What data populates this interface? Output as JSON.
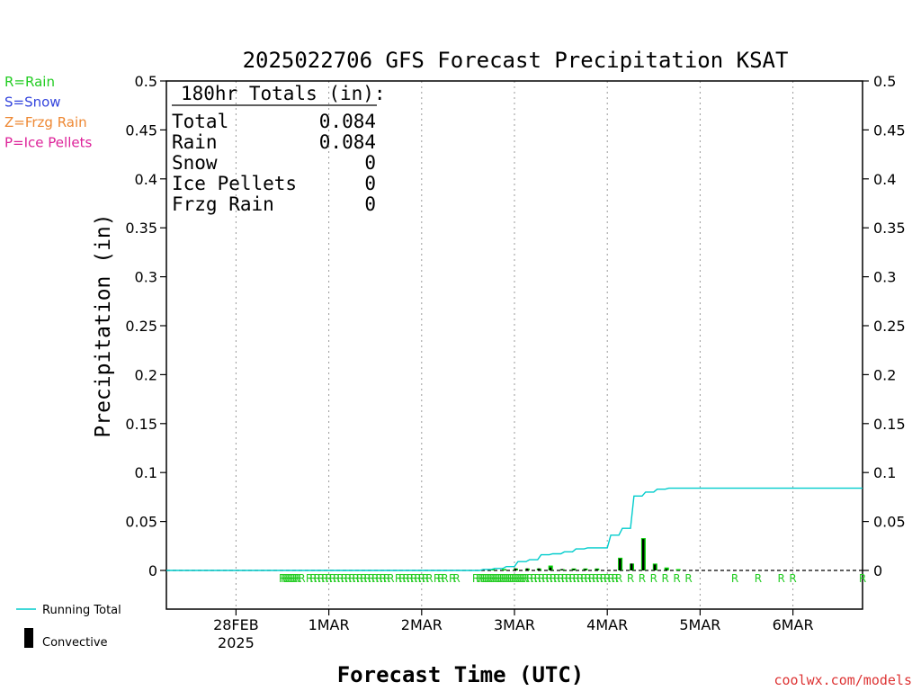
{
  "chart_data": {
    "type": "bar",
    "title": "2025022706 GFS Forecast Precipitation KSAT",
    "xlabel": "Forecast Time (UTC)",
    "ylabel": "Precipitation (in)",
    "ylim": [
      0,
      0.5
    ],
    "y_ticks": [
      "0",
      "0.05",
      "0.1",
      "0.15",
      "0.2",
      "0.25",
      "0.3",
      "0.35",
      "0.4",
      "0.45",
      "0.5"
    ],
    "x_ticks": [
      {
        "label": "28FEB",
        "sub": "2025",
        "hour": 18
      },
      {
        "label": "1MAR",
        "sub": "",
        "hour": 42
      },
      {
        "label": "2MAR",
        "sub": "",
        "hour": 66
      },
      {
        "label": "3MAR",
        "sub": "",
        "hour": 90
      },
      {
        "label": "4MAR",
        "sub": "",
        "hour": 114
      },
      {
        "label": "5MAR",
        "sub": "",
        "hour": 138
      },
      {
        "label": "6MAR",
        "sub": "",
        "hour": 162
      }
    ],
    "xlim_hours": [
      0,
      180
    ],
    "grid": "vertical-dotted",
    "series": [
      {
        "name": "Running Total",
        "color": "#00cccc",
        "points": [
          [
            0,
            0
          ],
          [
            81,
            0
          ],
          [
            84,
            0.001
          ],
          [
            87,
            0.002
          ],
          [
            90,
            0.004
          ],
          [
            93,
            0.009
          ],
          [
            96,
            0.011
          ],
          [
            99,
            0.016
          ],
          [
            102,
            0.017
          ],
          [
            105,
            0.019
          ],
          [
            108,
            0.022
          ],
          [
            111,
            0.023
          ],
          [
            114,
            0.023
          ],
          [
            117,
            0.036
          ],
          [
            120,
            0.043
          ],
          [
            123,
            0.076
          ],
          [
            126,
            0.08
          ],
          [
            129,
            0.083
          ],
          [
            132,
            0.084
          ],
          [
            180,
            0.084
          ]
        ]
      },
      {
        "name": "Convective",
        "color": "#000000",
        "points": [
          [
            90,
            0.002
          ],
          [
            93,
            0.002
          ],
          [
            96,
            0.002
          ],
          [
            99,
            0.003
          ],
          [
            102,
            0.001
          ],
          [
            105,
            0.001
          ],
          [
            108,
            0.001
          ],
          [
            111,
            0.001
          ],
          [
            117,
            0.012
          ],
          [
            120,
            0.007
          ],
          [
            123,
            0.032
          ],
          [
            126,
            0.006
          ],
          [
            129,
            0.001
          ]
        ]
      },
      {
        "name": "Rain",
        "color": "#00cc00",
        "points": [
          [
            84,
            0.001
          ],
          [
            87,
            0.001
          ],
          [
            90,
            0.002
          ],
          [
            93,
            0.002
          ],
          [
            96,
            0.002
          ],
          [
            99,
            0.005
          ],
          [
            102,
            0.001
          ],
          [
            105,
            0.002
          ],
          [
            108,
            0.002
          ],
          [
            111,
            0.002
          ],
          [
            117,
            0.013
          ],
          [
            120,
            0.007
          ],
          [
            123,
            0.033
          ],
          [
            126,
            0.007
          ],
          [
            129,
            0.003
          ],
          [
            132,
            0.001
          ]
        ]
      }
    ],
    "ptype_hours": [
      30,
      30.5,
      31,
      31.5,
      32,
      32.5,
      33,
      33.5,
      34,
      35,
      37,
      38,
      39,
      40,
      41,
      42,
      43,
      44,
      45,
      46,
      47,
      48,
      49,
      50,
      51,
      52,
      53,
      54,
      55,
      56,
      57,
      58,
      60,
      61,
      62,
      63,
      64,
      65,
      66,
      67,
      68,
      70,
      71,
      72,
      74,
      75,
      80,
      81,
      81.5,
      82,
      82.5,
      83,
      83.5,
      84,
      84.5,
      85,
      85.5,
      86,
      86.5,
      87,
      87.5,
      88,
      88.5,
      89,
      89.5,
      90,
      90.5,
      91,
      91.5,
      92,
      92.5,
      93,
      94,
      95,
      96,
      97,
      98,
      99,
      100,
      101,
      102,
      103,
      104,
      105,
      106,
      107,
      108,
      109,
      110,
      111,
      112,
      113,
      114,
      115,
      116,
      117,
      120,
      123,
      126,
      129,
      132,
      135,
      147,
      153,
      159,
      162,
      180
    ],
    "ptype_symbol": "R",
    "totals": {
      "header": "180hr Totals (in):",
      "rows": [
        {
          "label": "Total",
          "value": "0.084"
        },
        {
          "label": "Rain",
          "value": "0.084"
        },
        {
          "label": "Snow",
          "value": "0"
        },
        {
          "label": "Ice Pellets",
          "value": "0"
        },
        {
          "label": "Frzg Rain",
          "value": "0"
        }
      ]
    },
    "ptype_legend": [
      {
        "text": "R=Rain",
        "color": "#22cc22"
      },
      {
        "text": "S=Snow",
        "color": "#3344dd"
      },
      {
        "text": "Z=Frzg Rain",
        "color": "#ee8833"
      },
      {
        "text": "P=Ice Pellets",
        "color": "#dd2299"
      }
    ],
    "line_legend": [
      {
        "text": "Running Total",
        "color": "#00cccc",
        "kind": "line"
      },
      {
        "text": "Convective",
        "color": "#000000",
        "kind": "bar"
      }
    ]
  },
  "credit": "coolwx.com/models"
}
